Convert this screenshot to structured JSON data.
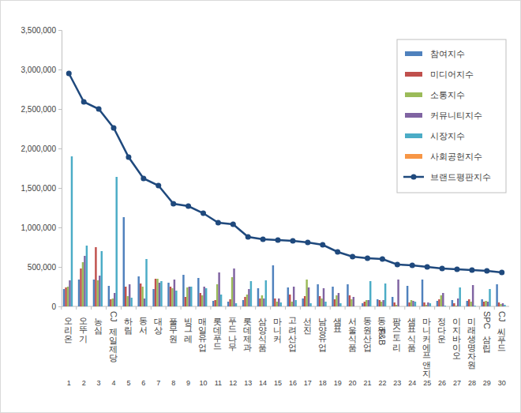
{
  "chart_data": {
    "type": "bar",
    "categories": [
      "오리온",
      "오뚜기",
      "농심",
      "CJ제일제당",
      "하림",
      "동서",
      "대상",
      "풀무원",
      "빙그레",
      "매일유업",
      "롯데푸드",
      "푸드나무",
      "롯데제과",
      "삼양식품",
      "마니커",
      "고려산업",
      "선진",
      "남양유업",
      "샘표",
      "서울식품",
      "동원산업",
      "동원F&B",
      "팜스토리",
      "샘표식품",
      "마니커에프앤지",
      "정다운",
      "이지바이오",
      "미래생명자원",
      "SPC삼립",
      "CJ씨푸드"
    ],
    "rank": [
      1,
      2,
      3,
      4,
      5,
      6,
      7,
      8,
      9,
      10,
      11,
      12,
      13,
      14,
      15,
      16,
      17,
      18,
      19,
      20,
      21,
      22,
      23,
      24,
      25,
      26,
      27,
      28,
      29,
      30
    ],
    "series": [
      {
        "name": "참여지수",
        "type": "bar",
        "color": "#4f81bd",
        "values": [
          220000,
          340000,
          340000,
          260000,
          1130000,
          380000,
          220000,
          300000,
          400000,
          360000,
          70000,
          60000,
          80000,
          230000,
          520000,
          240000,
          100000,
          280000,
          250000,
          280000,
          40000,
          90000,
          120000,
          260000,
          340000,
          70000,
          80000,
          70000,
          90000,
          280000
        ]
      },
      {
        "name": "미디어지수",
        "type": "bar",
        "color": "#c0504d",
        "values": [
          240000,
          480000,
          750000,
          90000,
          250000,
          290000,
          350000,
          250000,
          120000,
          170000,
          80000,
          90000,
          120000,
          100000,
          100000,
          150000,
          130000,
          130000,
          90000,
          140000,
          60000,
          80000,
          50000,
          50000,
          50000,
          90000,
          40000,
          90000,
          60000,
          50000
        ]
      },
      {
        "name": "소통지수",
        "type": "bar",
        "color": "#9bbb59",
        "values": [
          250000,
          560000,
          330000,
          100000,
          130000,
          250000,
          350000,
          230000,
          240000,
          140000,
          280000,
          370000,
          150000,
          140000,
          60000,
          60000,
          340000,
          100000,
          140000,
          90000,
          80000,
          60000,
          20000,
          80000,
          20000,
          140000,
          10000,
          60000,
          70000,
          30000
        ]
      },
      {
        "name": "커뮤니티지수",
        "type": "bar",
        "color": "#8064a2",
        "values": [
          330000,
          640000,
          390000,
          170000,
          280000,
          100000,
          300000,
          340000,
          250000,
          250000,
          430000,
          480000,
          220000,
          100000,
          100000,
          250000,
          240000,
          230000,
          170000,
          120000,
          80000,
          80000,
          340000,
          70000,
          50000,
          170000,
          100000,
          270000,
          60000,
          40000
        ]
      },
      {
        "name": "시장지수",
        "type": "bar",
        "color": "#4bacc6",
        "values": [
          1900000,
          770000,
          700000,
          1640000,
          110000,
          600000,
          320000,
          200000,
          250000,
          230000,
          150000,
          40000,
          320000,
          330000,
          50000,
          80000,
          40000,
          60000,
          40000,
          0,
          320000,
          290000,
          0,
          60000,
          40000,
          10000,
          240000,
          10000,
          220000,
          20000
        ]
      },
      {
        "name": "사회공헌지수",
        "type": "bar",
        "color": "#f79646",
        "values": [
          0,
          0,
          0,
          0,
          0,
          0,
          0,
          0,
          0,
          0,
          0,
          0,
          0,
          0,
          0,
          0,
          0,
          0,
          0,
          0,
          0,
          0,
          0,
          0,
          0,
          0,
          0,
          0,
          0,
          0
        ]
      },
      {
        "name": "브랜드평판지수",
        "type": "line",
        "color": "#1f497d",
        "marker": "circle",
        "values": [
          2950000,
          2590000,
          2500000,
          2260000,
          1890000,
          1620000,
          1530000,
          1300000,
          1270000,
          1180000,
          1060000,
          1040000,
          880000,
          850000,
          840000,
          830000,
          810000,
          780000,
          690000,
          630000,
          610000,
          600000,
          530000,
          520000,
          500000,
          480000,
          470000,
          460000,
          450000,
          430000
        ]
      }
    ],
    "ylim": [
      0,
      3500000
    ],
    "yticks": [
      {
        "value": 0,
        "label": "0"
      },
      {
        "value": 500000,
        "label": "500,000"
      },
      {
        "value": 1000000,
        "label": "1,000,000"
      },
      {
        "value": 1500000,
        "label": "1,500,000"
      },
      {
        "value": 2000000,
        "label": "2,000,000"
      },
      {
        "value": 2500000,
        "label": "2,500,000"
      },
      {
        "value": 3000000,
        "label": "3,000,000"
      },
      {
        "value": 3500000,
        "label": "3,500,000"
      }
    ],
    "grid": false,
    "legend": "upper right"
  }
}
